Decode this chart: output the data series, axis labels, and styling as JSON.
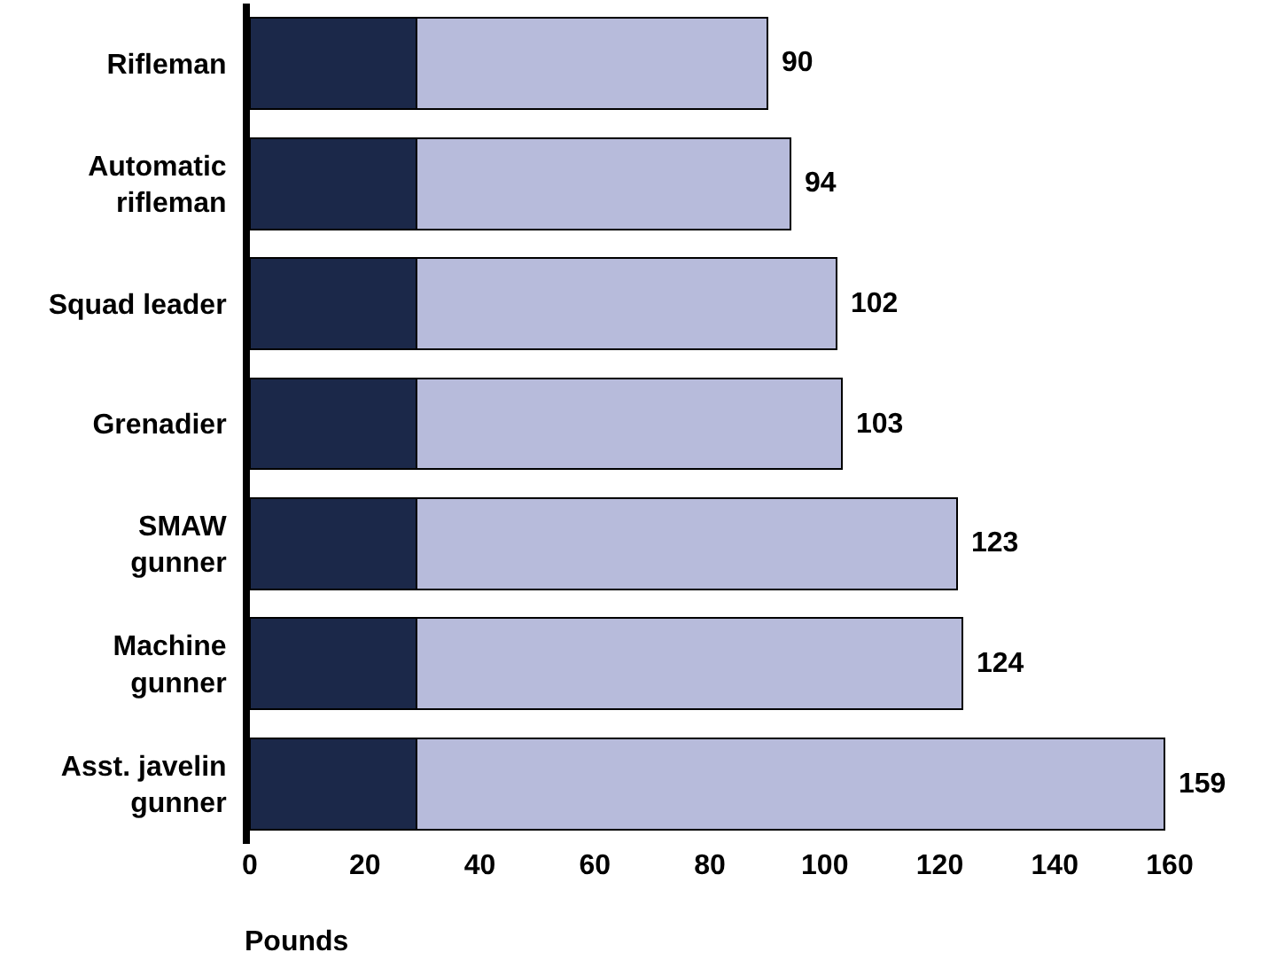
{
  "chart_data": {
    "type": "bar",
    "orientation": "horizontal",
    "stacked": true,
    "categories": [
      "Rifleman",
      "Automatic\nrifleman",
      "Squad leader",
      "Grenadier",
      "SMAW\ngunner",
      "Machine\ngunner",
      "Asst. javelin\ngunner"
    ],
    "series": [
      {
        "color": "#1b2849",
        "values": [
          29,
          29,
          29,
          29,
          29,
          29,
          29
        ]
      },
      {
        "color": "#b7bbdb",
        "values": [
          61,
          65,
          73,
          74,
          94,
          95,
          130
        ]
      }
    ],
    "totals": [
      "90",
      "94",
      "102",
      "103",
      "123",
      "124",
      "159"
    ],
    "xlim": [
      0,
      160
    ],
    "xticks": [
      0,
      20,
      40,
      60,
      80,
      100,
      120,
      140,
      160
    ],
    "xlabel": "Pounds",
    "grid": false
  }
}
